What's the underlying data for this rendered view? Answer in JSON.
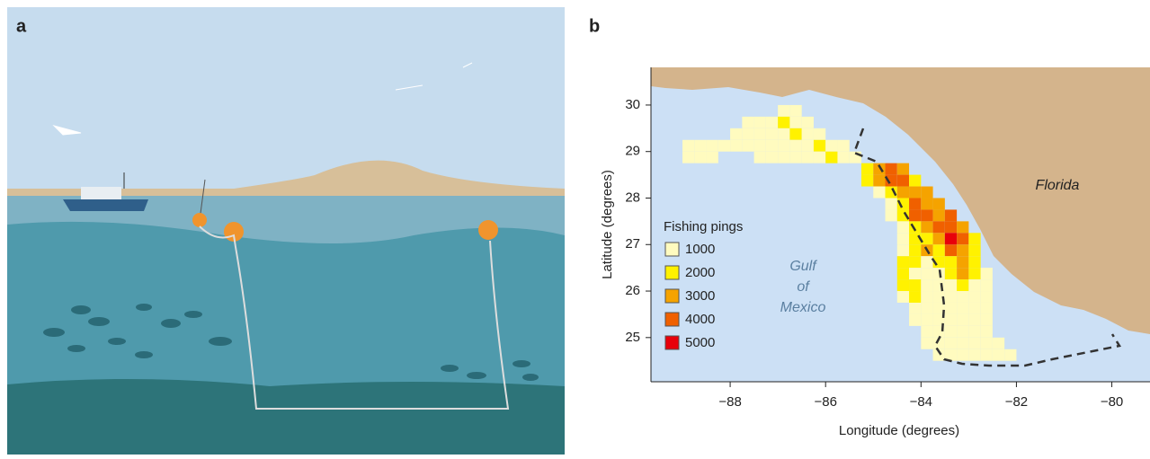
{
  "panel_labels": [
    "a",
    "b"
  ],
  "chart_data": {
    "type": "heatmap",
    "xlabel": "Longitude (degrees)",
    "ylabel": "Latitude (degrees)",
    "xlim": [
      -89.66,
      -79.2
    ],
    "ylim": [
      24.05,
      30.81
    ],
    "xticks": [
      {
        "value": -88,
        "label": "−88"
      },
      {
        "value": -86,
        "label": "−86"
      },
      {
        "value": -84,
        "label": "−84"
      },
      {
        "value": -82,
        "label": "−82"
      },
      {
        "value": -80,
        "label": "−80"
      }
    ],
    "yticks": [
      25,
      26,
      27,
      28,
      29,
      30
    ],
    "cell_size": 0.25,
    "legend": {
      "title": "Fishing pings",
      "values": [
        1000,
        2000,
        3000,
        4000,
        5000
      ],
      "colors": [
        "#fffbbf",
        "#fff200",
        "#f5a300",
        "#f06000",
        "#e8000b"
      ]
    },
    "annotations": [
      "Gulf",
      "of",
      "Mexico",
      "Florida"
    ],
    "rows": [
      {
        "lat": 29.75,
        "lon": [
          -87.0,
          -86.75
        ],
        "values": [
          1000,
          1000
        ]
      },
      {
        "lat": 29.5,
        "lon": [
          -87.75,
          -87.5,
          -87.25,
          -87.0,
          -86.75,
          -86.5
        ],
        "values": [
          1000,
          1000,
          1000,
          2000,
          1000,
          1000
        ]
      },
      {
        "lat": 29.25,
        "lon": [
          -88.0,
          -87.75,
          -87.5,
          -87.25,
          -87.0,
          -86.75,
          -86.5,
          -86.25
        ],
        "values": [
          1000,
          1000,
          1000,
          1000,
          1000,
          2000,
          1000,
          1000
        ]
      },
      {
        "lat": 29.0,
        "lon": [
          -89.0,
          -88.75,
          -88.5,
          -88.25,
          -88.0,
          -87.75,
          -87.5,
          -87.25,
          -87.0,
          -86.75,
          -86.5,
          -86.25,
          -86.0,
          -85.75
        ],
        "values": [
          1000,
          1000,
          1000,
          1000,
          1000,
          1000,
          1000,
          1000,
          1000,
          1000,
          1000,
          2000,
          1000,
          1000
        ]
      },
      {
        "lat": 28.75,
        "lon": [
          -89.0,
          -88.75,
          -88.5,
          -87.5,
          -87.25,
          -87.0,
          -86.75,
          -86.5,
          -86.25,
          -86.0,
          -85.75,
          -85.5
        ],
        "values": [
          1000,
          1000,
          1000,
          1000,
          1000,
          1000,
          1000,
          1000,
          1000,
          2000,
          1000,
          1000
        ]
      },
      {
        "lat": 28.5,
        "lon": [
          -85.25,
          -85.0,
          -84.75,
          -84.5
        ],
        "values": [
          2000,
          3000,
          4000,
          3000
        ]
      },
      {
        "lat": 28.25,
        "lon": [
          -85.25,
          -85.0,
          -84.75,
          -84.5,
          -84.25
        ],
        "values": [
          2000,
          3000,
          4000,
          4000,
          2000
        ]
      },
      {
        "lat": 28.0,
        "lon": [
          -85.0,
          -84.75,
          -84.5,
          -84.25,
          -84.0
        ],
        "values": [
          1000,
          2000,
          3000,
          3000,
          3000
        ]
      },
      {
        "lat": 27.75,
        "lon": [
          -84.75,
          -84.5,
          -84.25,
          -84.0,
          -83.75
        ],
        "values": [
          1000,
          2000,
          4000,
          3000,
          3000
        ]
      },
      {
        "lat": 27.5,
        "lon": [
          -84.75,
          -84.5,
          -84.25,
          -84.0,
          -83.75,
          -83.5
        ],
        "values": [
          1000,
          2000,
          4000,
          4000,
          3000,
          4000
        ]
      },
      {
        "lat": 27.25,
        "lon": [
          -84.5,
          -84.25,
          -84.0,
          -83.75,
          -83.5,
          -83.25
        ],
        "values": [
          1000,
          2000,
          3000,
          4000,
          4000,
          3000
        ]
      },
      {
        "lat": 27.0,
        "lon": [
          -84.5,
          -84.25,
          -84.0,
          -83.75,
          -83.5,
          -83.25,
          -83.0
        ],
        "values": [
          1000,
          2000,
          2000,
          3000,
          5000,
          4000,
          2000
        ]
      },
      {
        "lat": 26.75,
        "lon": [
          -84.5,
          -84.25,
          -84.0,
          -83.75,
          -83.5,
          -83.25,
          -83.0
        ],
        "values": [
          1000,
          2000,
          3000,
          2000,
          4000,
          3000,
          2000
        ]
      },
      {
        "lat": 26.5,
        "lon": [
          -84.5,
          -84.25,
          -84.0,
          -83.75,
          -83.5,
          -83.25,
          -83.0
        ],
        "values": [
          2000,
          2000,
          1000,
          2000,
          2000,
          3000,
          2000
        ]
      },
      {
        "lat": 26.25,
        "lon": [
          -84.5,
          -84.25,
          -84.0,
          -83.75,
          -83.5,
          -83.25,
          -83.0,
          -82.75
        ],
        "values": [
          2000,
          1000,
          1000,
          1000,
          2000,
          3000,
          2000,
          1000
        ]
      },
      {
        "lat": 26.0,
        "lon": [
          -84.5,
          -84.25,
          -84.0,
          -83.75,
          -83.5,
          -83.25,
          -83.0,
          -82.75
        ],
        "values": [
          2000,
          2000,
          1000,
          1000,
          1000,
          2000,
          1000,
          1000
        ]
      },
      {
        "lat": 25.75,
        "lon": [
          -84.5,
          -84.25,
          -84.0,
          -83.75,
          -83.5,
          -83.25,
          -83.0,
          -82.75
        ],
        "values": [
          1000,
          2000,
          1000,
          1000,
          1000,
          1000,
          1000,
          1000
        ]
      },
      {
        "lat": 25.5,
        "lon": [
          -84.25,
          -84.0,
          -83.75,
          -83.5,
          -83.25,
          -83.0,
          -82.75
        ],
        "values": [
          1000,
          1000,
          1000,
          1000,
          1000,
          1000,
          1000
        ]
      },
      {
        "lat": 25.25,
        "lon": [
          -84.25,
          -84.0,
          -83.75,
          -83.5,
          -83.25,
          -83.0,
          -82.75
        ],
        "values": [
          1000,
          1000,
          1000,
          1000,
          1000,
          1000,
          1000
        ]
      },
      {
        "lat": 25.0,
        "lon": [
          -84.0,
          -83.75,
          -83.5,
          -83.25,
          -83.0,
          -82.75
        ],
        "values": [
          1000,
          1000,
          1000,
          1000,
          1000,
          1000
        ]
      },
      {
        "lat": 24.75,
        "lon": [
          -84.0,
          -83.75,
          -83.5,
          -83.25,
          -83.0,
          -82.75,
          -82.5
        ],
        "values": [
          1000,
          1000,
          1000,
          1000,
          1000,
          1000,
          1000
        ]
      },
      {
        "lat": 24.5,
        "lon": [
          -83.75,
          -83.5,
          -83.25,
          -83.0,
          -82.75,
          -82.5,
          -82.25
        ],
        "values": [
          1000,
          1000,
          1000,
          1000,
          1000,
          1000,
          1000
        ]
      }
    ]
  }
}
